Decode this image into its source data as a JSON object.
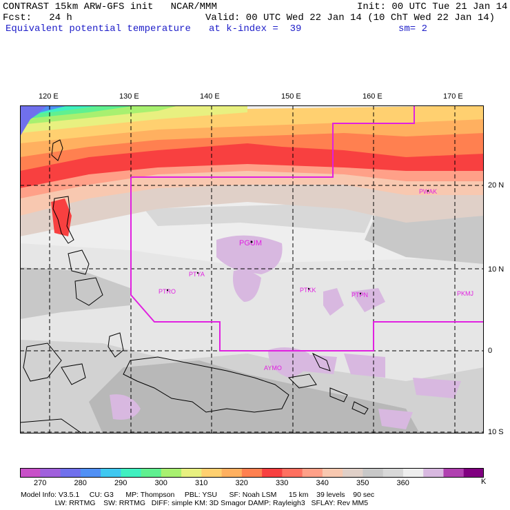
{
  "header": {
    "line1_left": "CONTRAST 15km ARW-GFS init   NCAR/MMM",
    "line1_right": "Init: 00 UTC Tue 21 Jan 14",
    "line2_left": "Fcst:   24 h",
    "line2_right": "Valid: 00 UTC Wed 22 Jan 14 (10 ChT Wed 22 Jan 14)",
    "line3_left": "Equivalent potential temperature",
    "line3_mid": "at k-index =  39",
    "line3_right": "sm= 2"
  },
  "map": {
    "lon_labels": [
      "120 E",
      "130 E",
      "140 E",
      "150 E",
      "160 E",
      "170 E"
    ],
    "lat_labels": [
      "20 N",
      "10 N",
      "0",
      "10 S"
    ],
    "stations": [
      "PGUM",
      "PTYA",
      "PTRO",
      "PTKK",
      "PTPN",
      "PKMJ",
      "PWAK",
      "AYMO"
    ],
    "colors": {
      "grid": "#000000",
      "boundary": "#e020e0",
      "land_outline": "#000000"
    }
  },
  "colorbar": {
    "labels": [
      "270",
      "280",
      "290",
      "300",
      "310",
      "320",
      "330",
      "340",
      "350",
      "360"
    ],
    "unit": "K",
    "colors": [
      "#c850c8",
      "#a060dc",
      "#7070ec",
      "#5090f4",
      "#40c8f0",
      "#40f0c0",
      "#60f090",
      "#a8f070",
      "#e8f080",
      "#ffd070",
      "#ffb060",
      "#ff8050",
      "#f84040",
      "#ff7060",
      "#ffa088",
      "#f8c8b0",
      "#e0d0c8",
      "#c8c8c8",
      "#d8d8d8",
      "#eeeeee",
      "#d8b8e0",
      "#b040b0",
      "#800080"
    ]
  },
  "model_info": {
    "line1": "Model Info: V3.5.1     CU: G3      MP: Thompson     PBL: YSU      SF: Noah LSM      15 km    39 levels    90 sec",
    "line2": "                 LW: RRTMG    SW: RRTMG   DIFF: simple KM: 3D Smagor DAMP: Rayleigh3   SFLAY: Rev MM5"
  }
}
